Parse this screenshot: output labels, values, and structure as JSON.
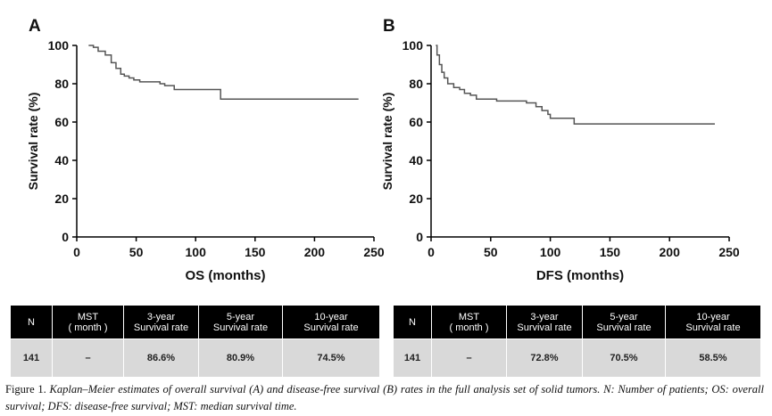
{
  "chart_data": [
    {
      "type": "line",
      "drawstyle": "steps-post",
      "panel": "A",
      "xlabel": "OS (months)",
      "ylabel": "Survival rate (%)",
      "x": [
        10,
        14,
        18,
        24,
        29,
        33,
        37,
        40,
        44,
        48,
        53,
        70,
        74,
        82,
        121,
        237
      ],
      "values": [
        100,
        99,
        97,
        95,
        91,
        88,
        85,
        84,
        83,
        82,
        81,
        80,
        79,
        77,
        72,
        72
      ],
      "color": "#555555",
      "xlim": [
        0,
        250
      ],
      "xticks": [
        0,
        50,
        100,
        150,
        200,
        250
      ],
      "ylim": [
        0,
        100
      ],
      "yticks": [
        0,
        20,
        40,
        60,
        80,
        100
      ]
    },
    {
      "type": "line",
      "drawstyle": "steps-post",
      "panel": "B",
      "xlabel": "DFS (months)",
      "ylabel": "Survival rate (%)",
      "x": [
        4,
        5,
        7,
        9,
        11,
        14,
        19,
        24,
        28,
        33,
        38,
        55,
        80,
        88,
        93,
        98,
        100,
        120,
        238
      ],
      "values": [
        100,
        95,
        90,
        86,
        83,
        80,
        78,
        77,
        75,
        74,
        72,
        71,
        70,
        68,
        66,
        64,
        62,
        59,
        59
      ],
      "color": "#555555",
      "xlim": [
        0,
        250
      ],
      "xticks": [
        0,
        50,
        100,
        150,
        200,
        250
      ],
      "ylim": [
        0,
        100
      ],
      "yticks": [
        0,
        20,
        40,
        60,
        80,
        100
      ]
    }
  ],
  "tables": [
    {
      "header": [
        [
          "N"
        ],
        [
          "MST",
          "( month )"
        ],
        [
          "3-year",
          "Survival rate"
        ],
        [
          "5-year",
          "Survival rate"
        ],
        [
          "10-year",
          "Survival rate"
        ]
      ],
      "rows": [
        [
          "141",
          "–",
          "86.6%",
          "80.9%",
          "74.5%"
        ]
      ]
    },
    {
      "header": [
        [
          "N"
        ],
        [
          "MST",
          "( month )"
        ],
        [
          "3-year",
          "Survival rate"
        ],
        [
          "5-year",
          "Survival rate"
        ],
        [
          "10-year",
          "Survival rate"
        ]
      ],
      "rows": [
        [
          "141",
          "–",
          "72.8%",
          "70.5%",
          "58.5%"
        ]
      ]
    }
  ],
  "caption": {
    "label": "Figure 1.",
    "text": "Kaplan–Meier estimates of overall survival (A) and disease-free survival (B) rates in the full analysis set of solid tumors. N: Number of patients; OS: overall survival; DFS: disease-free survival; MST: median survival time."
  }
}
